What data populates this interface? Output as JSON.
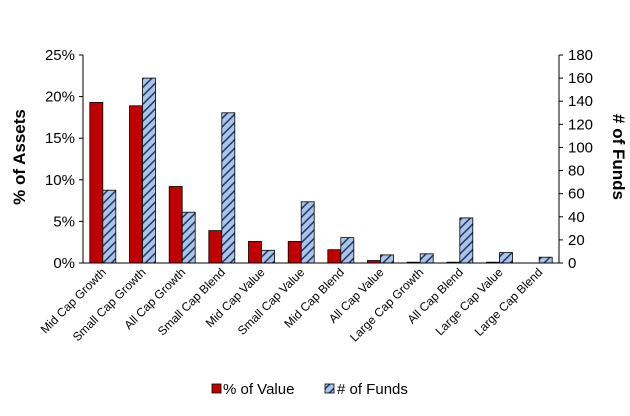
{
  "chart_data": {
    "type": "bar",
    "categories": [
      "Mid Cap Growth",
      "Small Cap Growth",
      "All Cap Growth",
      "Small Cap Blend",
      "Mid Cap Value",
      "Small Cap Value",
      "Mid Cap Blend",
      "All Cap Value",
      "Large Cap Growth",
      "All Cap Blend",
      "Large Cap Value",
      "Large Cap Blend"
    ],
    "series": [
      {
        "name": "% of Value",
        "axis": "left",
        "color": "#c00000",
        "values": [
          19.3,
          18.9,
          9.2,
          3.9,
          2.6,
          2.6,
          1.6,
          0.3,
          0.1,
          0.1,
          0.1,
          0.0
        ]
      },
      {
        "name": "# of Funds",
        "axis": "right",
        "color": "#a9c4e8",
        "pattern": "diagonal-hatch",
        "values": [
          63,
          160,
          44,
          130,
          11,
          53,
          22,
          7,
          8,
          39,
          9,
          5
        ]
      }
    ],
    "ylabel": "% of Assets",
    "y2label": "# of Funds",
    "ylim": [
      0,
      25
    ],
    "y2lim": [
      0,
      180
    ],
    "yticks": [
      "0%",
      "5%",
      "10%",
      "15%",
      "20%",
      "25%"
    ],
    "y2ticks": [
      "0",
      "20",
      "40",
      "60",
      "80",
      "100",
      "120",
      "140",
      "160",
      "180"
    ],
    "legend_position": "bottom",
    "grid": false
  }
}
